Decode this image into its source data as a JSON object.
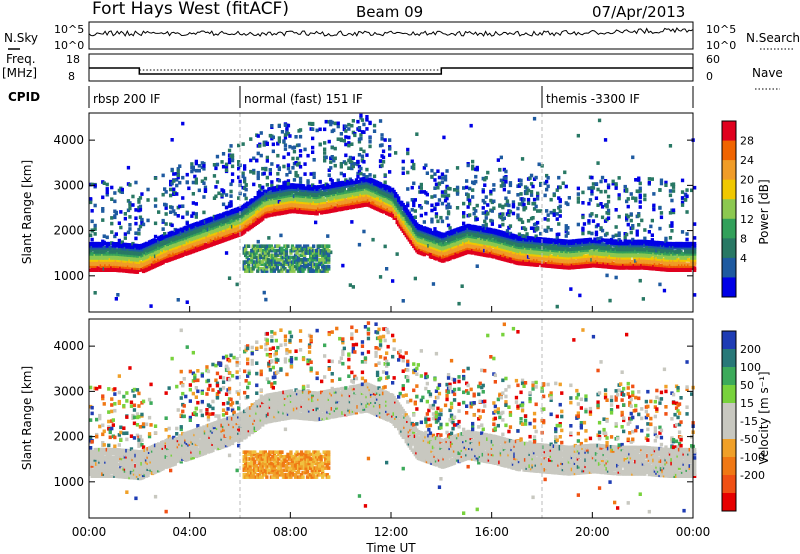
{
  "header": {
    "title": "Fort Hays West (fitACF)",
    "beam": "Beam 09",
    "date": "07/Apr/2013"
  },
  "small_panels": {
    "nsky_label": "N.Sky",
    "nsky_ticks": [
      "10^5",
      "10^0"
    ],
    "nsearch_label": "N.Search",
    "nsearch_ticks": [
      "10^5",
      "10^0"
    ],
    "freq_label_1": "Freq.",
    "freq_label_2": "[MHz]",
    "freq_ticks": [
      "18",
      "8"
    ],
    "nave_label": "Nave",
    "nave_ticks": [
      "60",
      "0"
    ],
    "cpid_label": "CPID"
  },
  "cpid": [
    {
      "name": "rbsp 200 IF",
      "start": 0,
      "end": 6
    },
    {
      "name": "normal (fast) 151 IF",
      "start": 6,
      "end": 18
    },
    {
      "name": "themis -3300 IF",
      "start": 18,
      "end": 24
    }
  ],
  "power_panel": {
    "ylabel": "Slant Range [km]",
    "cbar_label": "Power [dB]",
    "cbar_ticks": [
      "28",
      "24",
      "20",
      "16",
      "12",
      "8",
      "4"
    ],
    "cbar_colors": [
      "#e0001e",
      "#f06400",
      "#f09c28",
      "#f0c800",
      "#8cc850",
      "#32a05a",
      "#287864",
      "#1e5aa0",
      "#0000e6"
    ]
  },
  "velocity_panel": {
    "ylabel": "Slant Range [km]",
    "cbar_label": "Velocity [m s⁻¹]",
    "cbar_ticks": [
      "200",
      "100",
      "50",
      "15",
      "-15",
      "-50",
      "-100",
      "-200"
    ],
    "cbar_colors": [
      "#1e3cb4",
      "#287878",
      "#3caa5a",
      "#78d23c",
      "#c8c8c0",
      "#c8c8c0",
      "#f0a028",
      "#f07814",
      "#f05014",
      "#e60000"
    ]
  },
  "chart_data": {
    "type": "heatmap",
    "title": "Fort Hays West (fitACF)",
    "xlabel": "Time UT",
    "ylabel": "Slant Range [km]",
    "xlim": [
      0,
      24
    ],
    "ylim": [
      200,
      4600
    ],
    "xticks": [
      "00:00",
      "04:00",
      "08:00",
      "12:00",
      "16:00",
      "20:00",
      "00:00"
    ],
    "yticks": [
      "1000",
      "2000",
      "3000",
      "4000"
    ],
    "power_range_db": [
      0,
      30
    ],
    "velocity_range": [
      -200,
      200
    ],
    "frequency_mhz": [
      {
        "start": 0,
        "end": 2,
        "value": 13
      },
      {
        "start": 2,
        "end": 14,
        "value": 10.5
      },
      {
        "start": 14,
        "end": 24,
        "value": 13
      }
    ],
    "power_trace_km": [
      [
        0,
        1300
      ],
      [
        1,
        1300
      ],
      [
        2,
        1250
      ],
      [
        3,
        1500
      ],
      [
        4,
        1700
      ],
      [
        5,
        1900
      ],
      [
        6,
        2100
      ],
      [
        7,
        2500
      ],
      [
        8,
        2600
      ],
      [
        9,
        2550
      ],
      [
        10,
        2650
      ],
      [
        11,
        2750
      ],
      [
        12,
        2500
      ],
      [
        13,
        1700
      ],
      [
        14,
        1500
      ],
      [
        15,
        1700
      ],
      [
        16,
        1600
      ],
      [
        17,
        1450
      ],
      [
        18,
        1400
      ],
      [
        19,
        1350
      ],
      [
        20,
        1400
      ],
      [
        21,
        1350
      ],
      [
        22,
        1350
      ],
      [
        23,
        1300
      ],
      [
        24,
        1300
      ]
    ],
    "series": [
      {
        "name": "Power",
        "units": "dB"
      },
      {
        "name": "Velocity",
        "units": "m s⁻¹"
      }
    ]
  }
}
